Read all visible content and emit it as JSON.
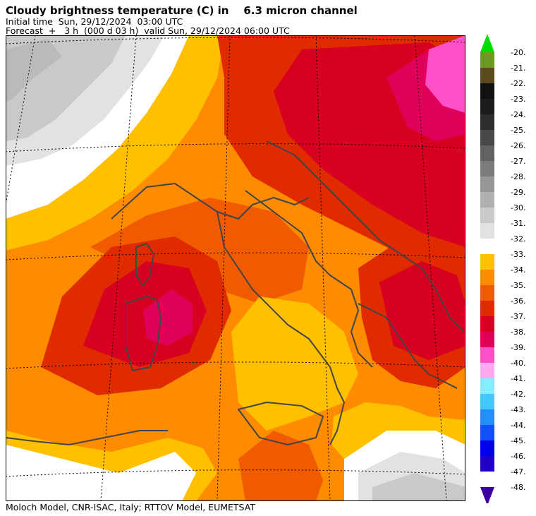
{
  "header": {
    "title": "Cloudy brightness temperature (C) in    6.3 micron channel",
    "initial_time": "Initial time  Sun, 29/12/2024  03:00 UTC",
    "forecast": "Forecast  +   3 h  (000 d 03 h)  valid Sun, 29/12/2024 06:00 UTC"
  },
  "footer": {
    "credit": "Moloch Model, CNR-ISAC, Italy; RTTOV Model, EUMETSAT"
  },
  "colorbar": {
    "levels": [
      {
        "label": "-20.",
        "color": "#00dd00"
      },
      {
        "label": "-21.",
        "color": "#6b9a22"
      },
      {
        "label": "-22.",
        "color": "#5a4a1e"
      },
      {
        "label": "-23.",
        "color": "#111111"
      },
      {
        "label": "-24.",
        "color": "#1c1c1c"
      },
      {
        "label": "-25.",
        "color": "#2e2e2e"
      },
      {
        "label": "-26.",
        "color": "#484848"
      },
      {
        "label": "-27.",
        "color": "#626262"
      },
      {
        "label": "-28.",
        "color": "#7c7c7c"
      },
      {
        "label": "-29.",
        "color": "#969696"
      },
      {
        "label": "-30.",
        "color": "#b0b0b0"
      },
      {
        "label": "-31.",
        "color": "#c9c9c9"
      },
      {
        "label": "-32.",
        "color": "#e2e2e2"
      },
      {
        "label": "-33.",
        "color": "#ffffff"
      },
      {
        "label": "-34.",
        "color": "#ffc000"
      },
      {
        "label": "-35.",
        "color": "#ff8c00"
      },
      {
        "label": "-36.",
        "color": "#f05a00"
      },
      {
        "label": "-37.",
        "color": "#e02a00"
      },
      {
        "label": "-38.",
        "color": "#d80020"
      },
      {
        "label": "-39.",
        "color": "#e0005a"
      },
      {
        "label": "-40.",
        "color": "#ff50c8"
      },
      {
        "label": "-41.",
        "color": "#ffaaf0"
      },
      {
        "label": "-42.",
        "color": "#80f0ff"
      },
      {
        "label": "-43.",
        "color": "#40c8ff"
      },
      {
        "label": "-44.",
        "color": "#2090ff"
      },
      {
        "label": "-45.",
        "color": "#1050ff"
      },
      {
        "label": "-46.",
        "color": "#0000e8"
      },
      {
        "label": "-47.",
        "color": "#2000c8"
      },
      {
        "label": "-48.",
        "color": "#3a00a0"
      }
    ]
  }
}
